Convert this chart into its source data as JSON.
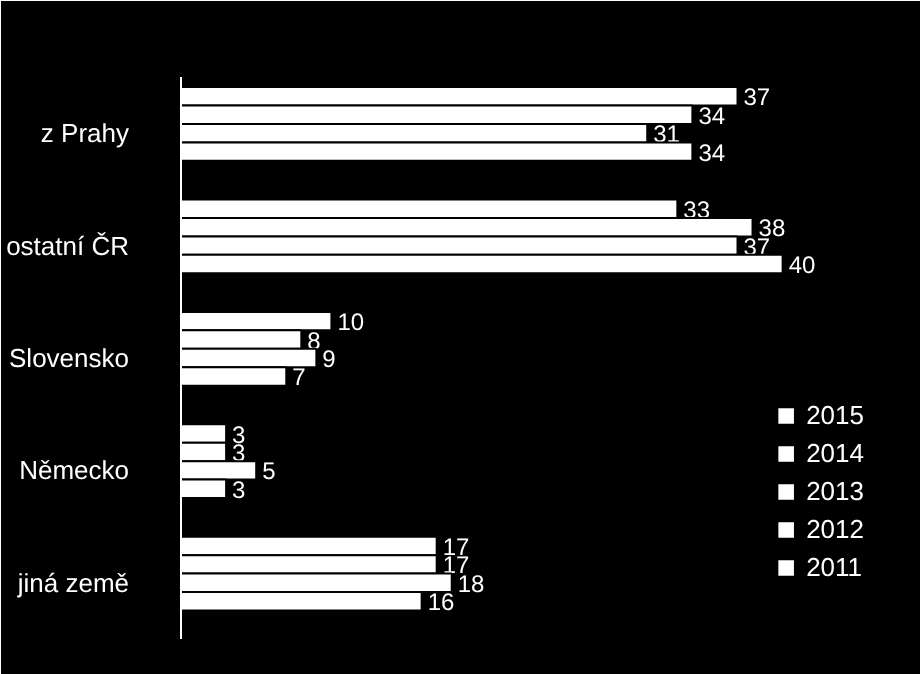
{
  "chart_data": {
    "type": "bar",
    "orientation": "horizontal",
    "categories": [
      "z Prahy",
      "ostatní ČR",
      "Slovensko",
      "Německo",
      "jiná země"
    ],
    "series": [
      {
        "name": "2015",
        "color": "#ffffff",
        "values": [
          37,
          33,
          10,
          3,
          17
        ]
      },
      {
        "name": "2014",
        "color": "#ffffff",
        "values": [
          34,
          38,
          8,
          3,
          17
        ]
      },
      {
        "name": "2013",
        "color": "#ffffff",
        "values": [
          31,
          37,
          9,
          5,
          18
        ]
      },
      {
        "name": "2012",
        "color": "#ffffff",
        "values": [
          34,
          40,
          7,
          3,
          16
        ]
      },
      {
        "name": "2011",
        "color": "#ffffff",
        "values": [
          null,
          null,
          null,
          null,
          null
        ]
      }
    ],
    "data_labels": true,
    "grid": false,
    "legend": "bottom right"
  }
}
